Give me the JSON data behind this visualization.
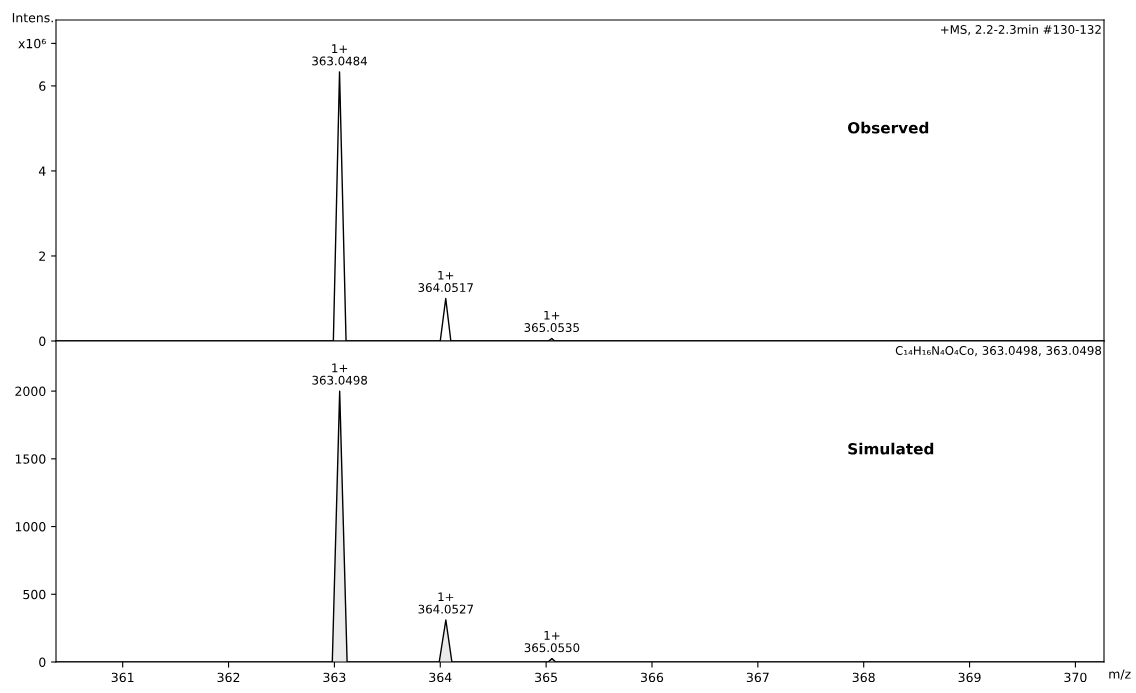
{
  "chart_data": [
    {
      "type": "line",
      "ylabel": "Intens.",
      "xlabel": null,
      "tick_labels": "y",
      "grid": false,
      "legend": false,
      "xlim": [
        360.37,
        370.27
      ],
      "ylim": [
        0,
        7.55
      ],
      "yticks": [
        0,
        2,
        4,
        6,
        {
          "value": 7,
          "label": "x10⁶"
        }
      ],
      "series": [
        {
          "color": "#000000",
          "x": [
            360.37,
            362.99,
            363.0484,
            363.11,
            364.0,
            364.0517,
            364.1,
            365.02,
            365.0535,
            365.08,
            370.27
          ],
          "values": [
            0,
            0,
            6.33,
            0,
            0,
            1.0,
            0,
            0,
            0.06,
            0,
            0
          ]
        }
      ],
      "annotations": [
        "+MS, 2.2-2.3min #130-132",
        "Observed",
        {
          "text": "1+\n363.0484",
          "x": 363.0484,
          "y": 6.33
        },
        {
          "text": "1+\n364.0517",
          "x": 364.0517,
          "y": 1.0
        },
        {
          "text": "1+\n365.0535",
          "x": 365.0535,
          "y": 0.06
        }
      ]
    },
    {
      "type": "area",
      "xlabel": "m/z",
      "grid": false,
      "legend": false,
      "xlim": [
        360.37,
        370.27
      ],
      "xticks": [
        361,
        362,
        363,
        364,
        365,
        366,
        367,
        368,
        369,
        370
      ],
      "ylim": [
        0,
        2370
      ],
      "yticks": [
        0,
        500,
        1000,
        1500,
        2000
      ],
      "series": [
        {
          "color": "#000000",
          "x": [
            360.37,
            362.98,
            363.0498,
            363.12,
            363.99,
            364.0527,
            364.11,
            365.02,
            365.055,
            365.09,
            370.27
          ],
          "values": [
            0,
            0,
            2000,
            0,
            0,
            310,
            0,
            0,
            25,
            0,
            0
          ]
        }
      ],
      "annotations": [
        "C₁₄H₁₆N₄O₄Co, 363.0498, 363.0498",
        "Simulated",
        {
          "text": "1+\n363.0498",
          "x": 363.0498,
          "y": 2000
        },
        {
          "text": "1+\n364.0527",
          "x": 364.0527,
          "y": 310
        },
        {
          "text": "1+\n365.0550",
          "x": 365.055,
          "y": 25
        }
      ]
    }
  ]
}
